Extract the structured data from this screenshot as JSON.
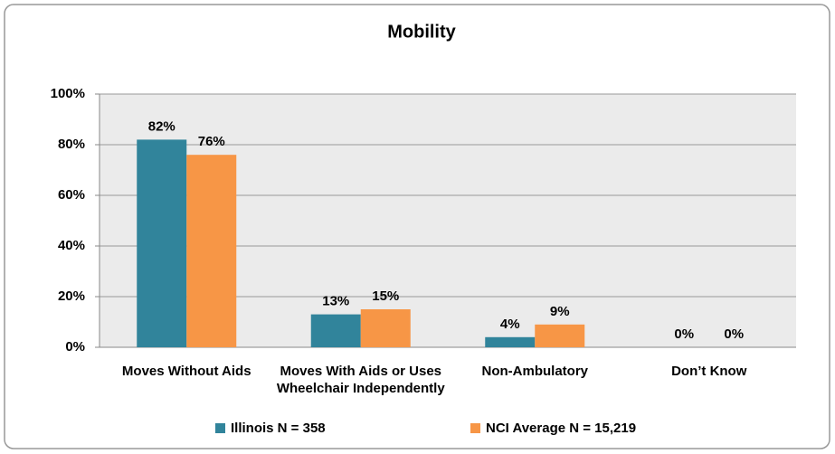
{
  "chart_data": {
    "type": "bar",
    "title": "Mobility",
    "categories": [
      "Moves Without Aids",
      "Moves With Aids or Uses Wheelchair Independently",
      "Non-Ambulatory",
      "Don’t Know"
    ],
    "series": [
      {
        "name": "Illinois N = 358",
        "color": "#31849b",
        "values": [
          82,
          13,
          4,
          0
        ],
        "value_labels": [
          "82%",
          "13%",
          "4%",
          "0%"
        ]
      },
      {
        "name": "NCI Average N = 15,219",
        "color": "#f79646",
        "values": [
          76,
          15,
          9,
          0
        ],
        "value_labels": [
          "76%",
          "15%",
          "9%",
          "0%"
        ]
      }
    ],
    "ylim": [
      0,
      100
    ],
    "yticks": [
      {
        "value": 0,
        "label": "0%"
      },
      {
        "value": 20,
        "label": "20%"
      },
      {
        "value": 40,
        "label": "40%"
      },
      {
        "value": 60,
        "label": "60%"
      },
      {
        "value": 80,
        "label": "80%"
      },
      {
        "value": 100,
        "label": "100%"
      }
    ],
    "grid": true,
    "legend": "bottom"
  }
}
